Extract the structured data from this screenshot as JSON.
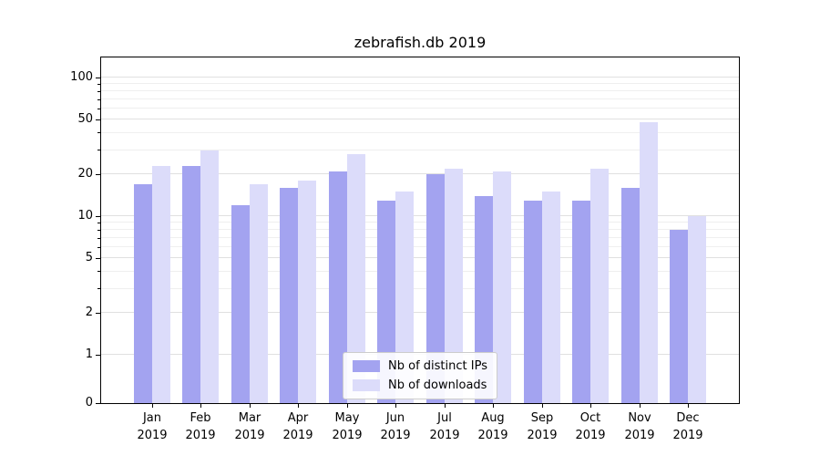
{
  "title": "zebrafish.db 2019",
  "chart_data": {
    "type": "bar",
    "title": "zebrafish.db 2019",
    "yscale": "symlog",
    "grid": true,
    "legend_position": "lower center",
    "ylim": [
      0,
      140
    ],
    "yticks": [
      0,
      1,
      2,
      5,
      10,
      20,
      50,
      100
    ],
    "yticks_minor": [
      3,
      4,
      6,
      7,
      8,
      9,
      30,
      40,
      60,
      70,
      80,
      90
    ],
    "categories": [
      "Jan 2019",
      "Feb 2019",
      "Mar 2019",
      "Apr 2019",
      "May 2019",
      "Jun 2019",
      "Jul 2019",
      "Aug 2019",
      "Sep 2019",
      "Oct 2019",
      "Nov 2019",
      "Dec 2019"
    ],
    "series": [
      {
        "name": "Nb of distinct IPs",
        "color": "#a3a3f0",
        "values": [
          17,
          23,
          12,
          16,
          21,
          13,
          20,
          14,
          13,
          13,
          16,
          8
        ]
      },
      {
        "name": "Nb of downloads",
        "color": "#dcdcfa",
        "values": [
          23,
          30,
          17,
          18,
          28,
          15,
          22,
          21,
          15,
          22,
          48,
          10
        ]
      }
    ]
  }
}
